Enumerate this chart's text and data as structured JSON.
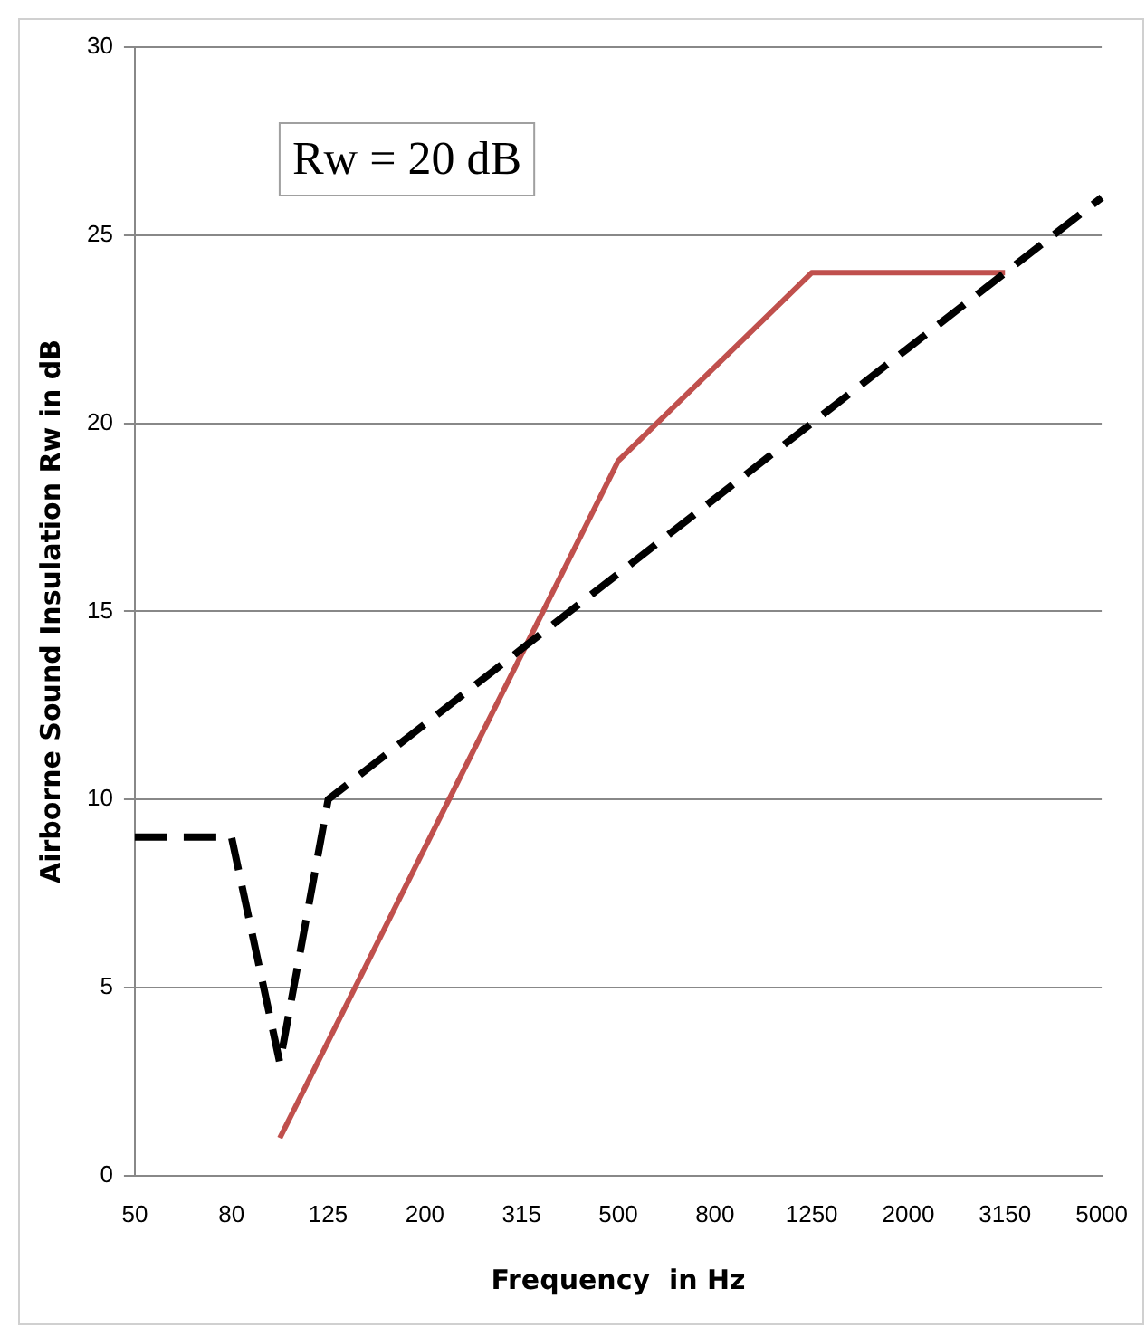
{
  "chart_data": {
    "type": "line",
    "xlabel": "Frequency  in Hz",
    "ylabel": "Airborne Sound Insulation Rw in dB",
    "annotations": [
      "Rw = 20 dB"
    ],
    "categories": [
      "50",
      null,
      "80",
      null,
      "125",
      null,
      "200",
      null,
      "315",
      null,
      "500",
      null,
      "800",
      null,
      "1250",
      null,
      "2000",
      null,
      "3150",
      null,
      "5000"
    ],
    "series": [
      {
        "color": "#000000",
        "line_style": "dashed",
        "values": [
          9,
          9,
          9,
          3,
          10,
          11,
          12,
          13,
          14,
          15,
          16,
          17,
          18,
          19,
          20,
          21,
          22,
          23,
          24,
          25,
          26
        ]
      },
      {
        "color": "#c0504d",
        "line_style": "solid",
        "values": [
          null,
          null,
          null,
          1,
          null,
          null,
          null,
          null,
          null,
          null,
          19,
          null,
          null,
          null,
          24,
          null,
          null,
          null,
          24,
          null,
          null
        ]
      }
    ],
    "ylim": [
      0,
      30
    ],
    "yticks": [
      0,
      5,
      10,
      15,
      20,
      25,
      30
    ],
    "grid": "y",
    "legend": false,
    "marker": "none"
  }
}
